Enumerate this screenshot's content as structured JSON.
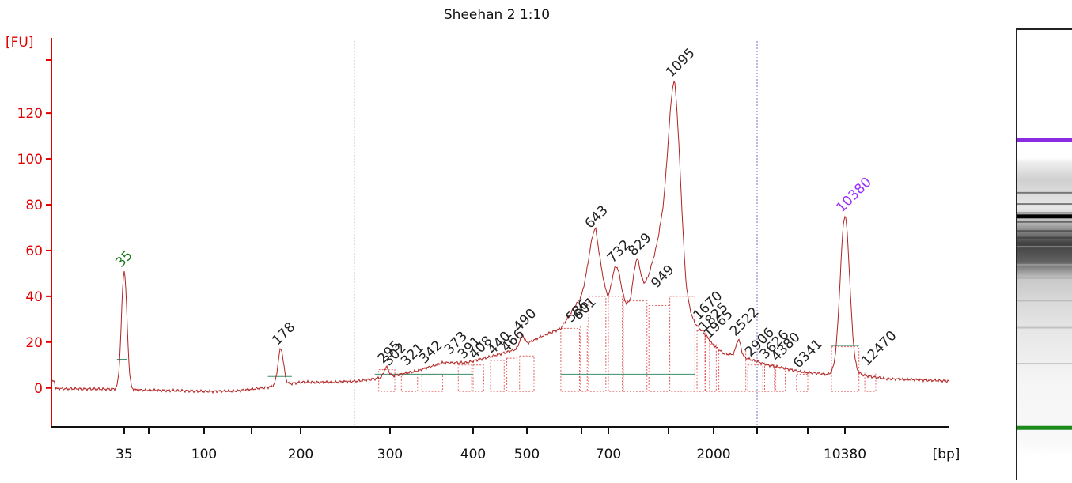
{
  "chart_data": {
    "type": "line",
    "title": "Sheehan 2 1:10",
    "ylabel": "[FU]",
    "xlabel": "[bp]",
    "ylim": [
      -17,
      148
    ],
    "yticks": [
      0,
      20,
      40,
      60,
      80,
      100,
      120
    ],
    "xticks": [
      {
        "label": "35",
        "x": 35
      },
      {
        "label": "",
        "x": 58
      },
      {
        "label": "100",
        "x": 100
      },
      {
        "label": "",
        "x": 150
      },
      {
        "label": "200",
        "x": 200
      },
      {
        "label": "300",
        "x": 300
      },
      {
        "label": "400",
        "x": 400
      },
      {
        "label": "500",
        "x": 500
      },
      {
        "label": "",
        "x": 600
      },
      {
        "label": "700",
        "x": 700
      },
      {
        "label": "",
        "x": 1000
      },
      {
        "label": "2000",
        "x": 2000
      },
      {
        "label": "",
        "x": 3000
      },
      {
        "label": "",
        "x": 7000
      },
      {
        "label": "10380",
        "x": 10380
      }
    ],
    "dashed_markers_bp": [
      255,
      3000
    ],
    "baseline": [
      [
        20,
        -0.3
      ],
      [
        30,
        -0.5
      ],
      [
        35,
        -0.5
      ],
      [
        40,
        -0.8
      ],
      [
        60,
        -1
      ],
      [
        80,
        -1.2
      ],
      [
        100,
        -1.5
      ],
      [
        130,
        -1.3
      ],
      [
        160,
        0
      ],
      [
        200,
        2.5
      ],
      [
        230,
        2.5
      ],
      [
        260,
        3
      ],
      [
        280,
        4
      ],
      [
        300,
        5
      ],
      [
        330,
        7.5
      ],
      [
        360,
        11
      ],
      [
        390,
        11
      ],
      [
        420,
        13
      ],
      [
        450,
        15
      ],
      [
        480,
        17
      ],
      [
        520,
        22
      ],
      [
        560,
        26
      ],
      [
        600,
        40
      ],
      [
        650,
        60
      ],
      [
        700,
        38
      ],
      [
        750,
        40
      ],
      [
        800,
        34
      ],
      [
        850,
        38
      ],
      [
        950,
        66
      ],
      [
        1095,
        70
      ],
      [
        1300,
        35
      ],
      [
        1500,
        28
      ],
      [
        1670,
        25
      ],
      [
        1825,
        22
      ],
      [
        1965,
        19
      ],
      [
        2200,
        15
      ],
      [
        2522,
        14
      ],
      [
        2906,
        12
      ],
      [
        3600,
        10
      ],
      [
        4380,
        9
      ],
      [
        6341,
        7
      ],
      [
        8500,
        6
      ],
      [
        9500,
        6
      ],
      [
        10380,
        6
      ],
      [
        11500,
        6
      ],
      [
        12470,
        5
      ],
      [
        14000,
        4
      ],
      [
        18000,
        3.5
      ],
      [
        22000,
        3
      ]
    ],
    "peaks": [
      {
        "label": "35",
        "x": 35,
        "y": 51,
        "color": "#1a7a1a"
      },
      {
        "label": "178",
        "x": 178,
        "y": 17,
        "color": "#222222"
      },
      {
        "label": "295",
        "x": 295,
        "y": 9,
        "color": "#222222"
      },
      {
        "label": "302",
        "x": 302,
        "y": 8,
        "color": "#222222"
      },
      {
        "label": "321",
        "x": 321,
        "y": 8,
        "color": "#222222"
      },
      {
        "label": "342",
        "x": 342,
        "y": 9,
        "color": "#222222"
      },
      {
        "label": "373",
        "x": 373,
        "y": 13,
        "color": "#222222"
      },
      {
        "label": "391",
        "x": 391,
        "y": 11,
        "color": "#222222"
      },
      {
        "label": "408",
        "x": 408,
        "y": 11,
        "color": "#222222"
      },
      {
        "label": "440",
        "x": 440,
        "y": 13,
        "color": "#222222"
      },
      {
        "label": "466",
        "x": 466,
        "y": 14,
        "color": "#222222"
      },
      {
        "label": "490",
        "x": 490,
        "y": 23,
        "color": "#222222"
      },
      {
        "label": "586",
        "x": 586,
        "y": 27,
        "color": "#222222"
      },
      {
        "label": "601",
        "x": 601,
        "y": 28,
        "color": "#222222"
      },
      {
        "label": "643",
        "x": 643,
        "y": 68,
        "color": "#222222"
      },
      {
        "label": "732",
        "x": 732,
        "y": 53,
        "color": "#222222"
      },
      {
        "label": "829",
        "x": 829,
        "y": 56,
        "color": "#222222"
      },
      {
        "label": "949",
        "x": 949,
        "y": 42,
        "color": "#222222"
      },
      {
        "label": "1095",
        "x": 1095,
        "y": 134,
        "color": "#222222"
      },
      {
        "label": "1670",
        "x": 1670,
        "y": 28,
        "color": "#222222"
      },
      {
        "label": "1825",
        "x": 1825,
        "y": 23,
        "color": "#222222"
      },
      {
        "label": "1965",
        "x": 1965,
        "y": 20,
        "color": "#222222"
      },
      {
        "label": "2522",
        "x": 2522,
        "y": 21,
        "color": "#222222"
      },
      {
        "label": "2906",
        "x": 2906,
        "y": 12,
        "color": "#222222"
      },
      {
        "label": "3626",
        "x": 3626,
        "y": 11,
        "color": "#222222"
      },
      {
        "label": "4380",
        "x": 4380,
        "y": 10,
        "color": "#222222"
      },
      {
        "label": "6341",
        "x": 6341,
        "y": 7,
        "color": "#222222"
      },
      {
        "label": "10380",
        "x": 10380,
        "y": 75,
        "color": "#9b30ff"
      },
      {
        "label": "12470",
        "x": 12470,
        "y": 8,
        "color": "#222222"
      }
    ],
    "integration_regions": [
      [
        285,
        305,
        8
      ],
      [
        312,
        330,
        6
      ],
      [
        335,
        360,
        6
      ],
      [
        380,
        398,
        10
      ],
      [
        400,
        418,
        10
      ],
      [
        430,
        455,
        12
      ],
      [
        460,
        480,
        13
      ],
      [
        485,
        512,
        14
      ],
      [
        560,
        596,
        26
      ],
      [
        598,
        620,
        27
      ],
      [
        625,
        690,
        40
      ],
      [
        700,
        760,
        40
      ],
      [
        765,
        880,
        38
      ],
      [
        890,
        1010,
        36
      ],
      [
        1020,
        1500,
        40
      ],
      [
        1550,
        1750,
        25
      ],
      [
        1760,
        1880,
        22
      ],
      [
        1890,
        2050,
        19
      ],
      [
        2100,
        2700,
        17
      ],
      [
        2750,
        3300,
        10
      ],
      [
        3400,
        4000,
        10
      ],
      [
        4100,
        4800,
        9
      ],
      [
        5800,
        7000,
        6
      ],
      [
        9000,
        11500,
        18
      ],
      [
        12000,
        13000,
        7
      ]
    ],
    "colors": {
      "axis": "#e00000",
      "trace": "#b22222",
      "peak_fill_edge": "#e06060",
      "baseline_segment": "#3a8f6a",
      "dashed_marker": "#606060",
      "lower_marker": "#1a7a1a",
      "upper_marker": "#9b30ff"
    },
    "gel_bands": [
      {
        "pos": 0.24,
        "color": "#8a2be2",
        "weight": 1
      },
      {
        "pos": 0.41,
        "color": "#000000",
        "weight": 1
      },
      {
        "pos": 0.88,
        "color": "#1a8a1a",
        "weight": 1
      }
    ]
  }
}
